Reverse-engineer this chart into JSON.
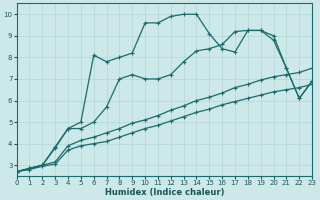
{
  "xlabel": "Humidex (Indice chaleur)",
  "xlim": [
    0,
    23
  ],
  "ylim": [
    2.5,
    10.5
  ],
  "xticks": [
    0,
    1,
    2,
    3,
    4,
    5,
    6,
    7,
    8,
    9,
    10,
    11,
    12,
    13,
    14,
    15,
    16,
    17,
    18,
    19,
    20,
    21,
    22,
    23
  ],
  "yticks": [
    3,
    4,
    5,
    6,
    7,
    8,
    9,
    10
  ],
  "background_color": "#cde8e8",
  "grid_color": "#b8d8d8",
  "line_color": "#1a6b6b",
  "series1": {
    "x": [
      0,
      1,
      2,
      3,
      4,
      5,
      6,
      7,
      8,
      9,
      10,
      11,
      12,
      13,
      14,
      15,
      16,
      17,
      18,
      19,
      20,
      21,
      22,
      23
    ],
    "y": [
      2.7,
      2.85,
      3.0,
      3.85,
      4.7,
      5.0,
      8.1,
      7.8,
      8.0,
      8.2,
      9.6,
      9.6,
      9.9,
      10.0,
      10.0,
      9.1,
      8.4,
      8.25,
      9.25,
      9.25,
      8.8,
      7.5,
      6.1,
      6.9
    ]
  },
  "series2": {
    "x": [
      0,
      1,
      2,
      3,
      4,
      5,
      6,
      7,
      8,
      9,
      10,
      11,
      12,
      13,
      14,
      15,
      16,
      17,
      18,
      19,
      20,
      21,
      22,
      23
    ],
    "y": [
      2.7,
      2.85,
      3.0,
      3.8,
      4.7,
      4.7,
      5.0,
      5.7,
      7.0,
      7.2,
      7.0,
      7.0,
      7.2,
      7.8,
      8.3,
      8.4,
      8.6,
      9.2,
      9.25,
      9.25,
      9.0,
      7.5,
      6.1,
      6.9
    ]
  },
  "series3": {
    "x": [
      0,
      1,
      2,
      3,
      4,
      5,
      6,
      7,
      8,
      9,
      10,
      11,
      12,
      13,
      14,
      15,
      16,
      17,
      18,
      19,
      20,
      21,
      22,
      23
    ],
    "y": [
      2.7,
      2.85,
      3.0,
      3.15,
      3.9,
      4.15,
      4.3,
      4.5,
      4.7,
      4.95,
      5.1,
      5.3,
      5.55,
      5.75,
      6.0,
      6.15,
      6.35,
      6.6,
      6.75,
      6.95,
      7.1,
      7.2,
      7.3,
      7.5
    ]
  },
  "series4": {
    "x": [
      0,
      1,
      2,
      3,
      4,
      5,
      6,
      7,
      8,
      9,
      10,
      11,
      12,
      13,
      14,
      15,
      16,
      17,
      18,
      19,
      20,
      21,
      22,
      23
    ],
    "y": [
      2.7,
      2.8,
      2.95,
      3.05,
      3.7,
      3.9,
      4.0,
      4.1,
      4.3,
      4.5,
      4.7,
      4.85,
      5.05,
      5.25,
      5.45,
      5.6,
      5.8,
      5.95,
      6.1,
      6.25,
      6.4,
      6.5,
      6.6,
      6.75
    ]
  }
}
